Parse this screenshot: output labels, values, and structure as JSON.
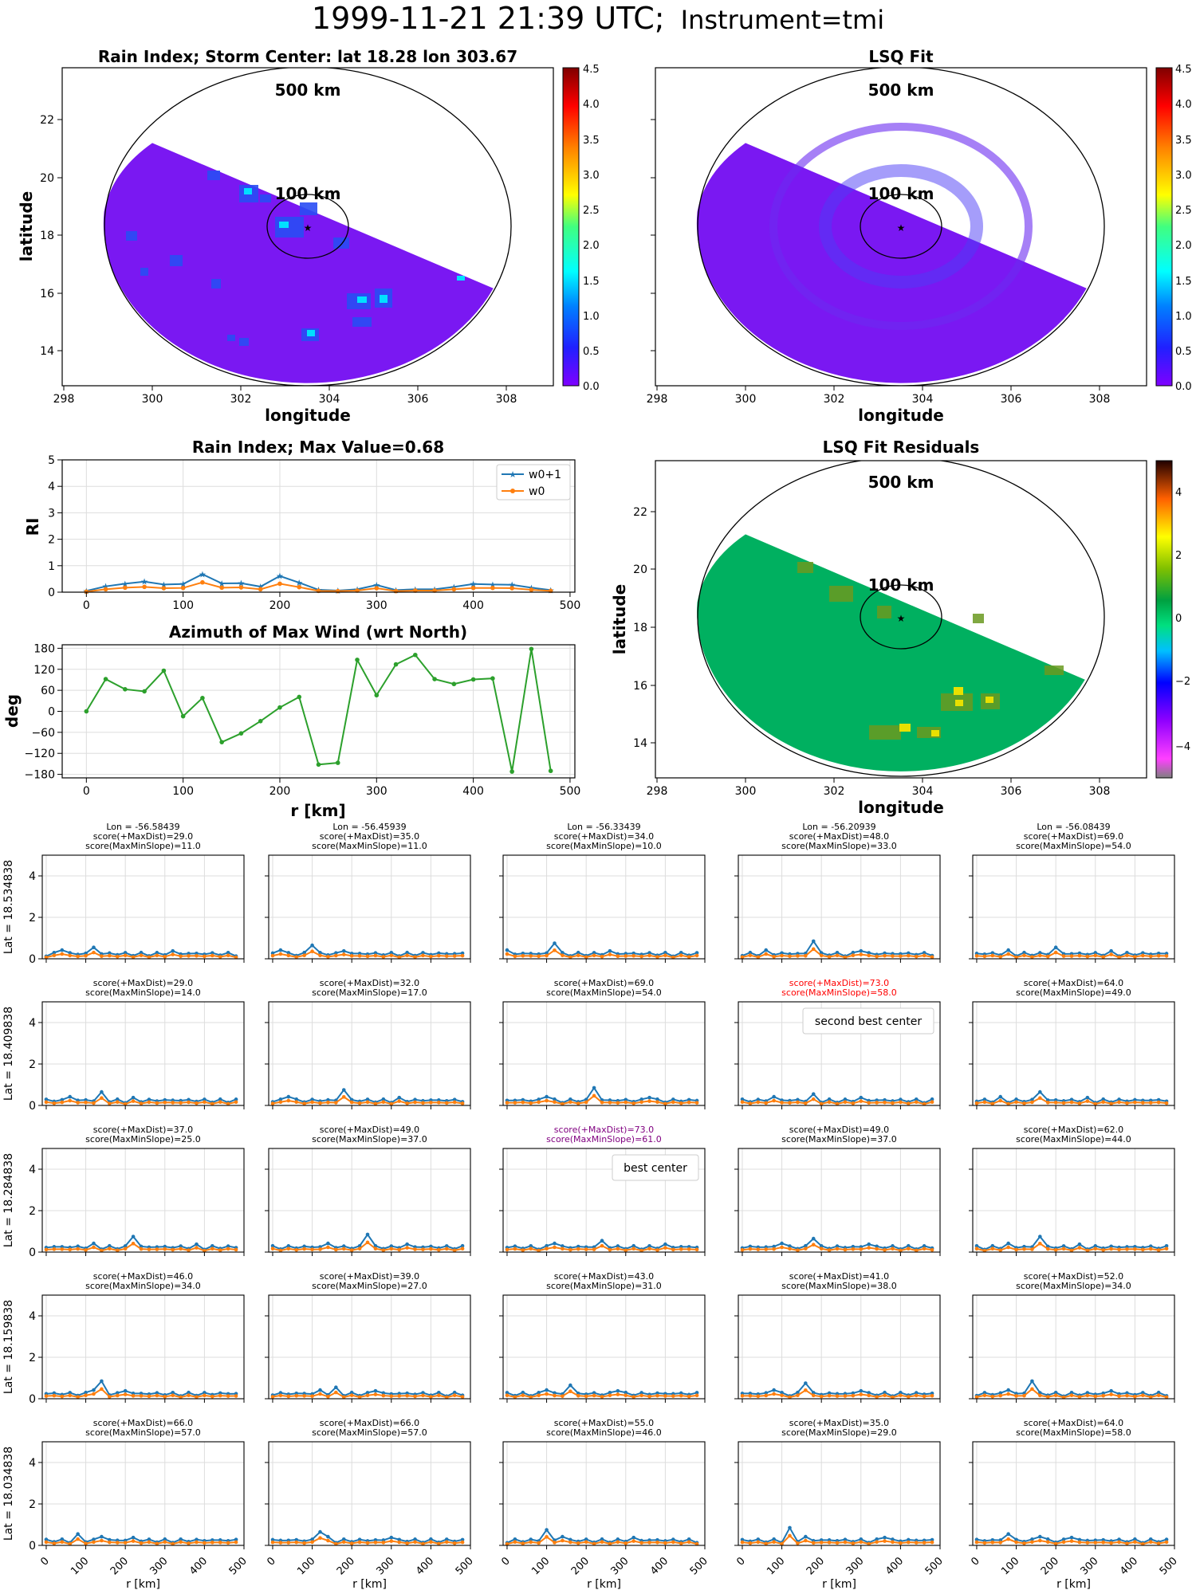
{
  "figure": {
    "title_main": "1999-11-21 21:39 UTC;",
    "title_instrument": "Instrument=tmi"
  },
  "maps": [
    {
      "title": "Rain Index; Storm Center: lat 18.28 lon 303.67",
      "xlabel": "longitude",
      "ylabel": "latitude",
      "xticks": [
        "298",
        "300",
        "302",
        "304",
        "306",
        "308"
      ],
      "yticks": [
        "14",
        "16",
        "18",
        "20",
        "22"
      ],
      "colorbar_ticks": [
        "0.0",
        "0.5",
        "1.0",
        "1.5",
        "2.0",
        "2.5",
        "3.0",
        "3.5",
        "4.0",
        "4.5"
      ],
      "ring_labels": [
        "500 km",
        "100 km"
      ],
      "colormap": "gist_rainbow"
    },
    {
      "title": "LSQ Fit",
      "xlabel": "longitude",
      "ylabel": "",
      "xticks": [
        "298",
        "300",
        "302",
        "304",
        "306",
        "308"
      ],
      "yticks": [],
      "colorbar_ticks": [
        "0.0",
        "0.5",
        "1.0",
        "1.5",
        "2.0",
        "2.5",
        "3.0",
        "3.5",
        "4.0",
        "4.5"
      ],
      "ring_labels": [
        "500 km",
        "100 km"
      ],
      "colormap": "gist_rainbow"
    },
    {
      "title": "LSQ Fit Residuals",
      "xlabel": "longitude",
      "ylabel": "latitude",
      "xticks": [
        "298",
        "300",
        "302",
        "304",
        "306",
        "308"
      ],
      "yticks": [
        "14",
        "16",
        "18",
        "20",
        "22"
      ],
      "colorbar_ticks": [
        "−4",
        "−2",
        "0",
        "2",
        "4"
      ],
      "ring_labels": [
        "500 km",
        "100 km"
      ],
      "colormap": "gist_ncar"
    }
  ],
  "chart_data": [
    {
      "type": "line",
      "title": "Rain Index; Max Value=0.68",
      "ylabel": "RI",
      "xlabel": "",
      "xticks": [
        "0",
        "100",
        "200",
        "300",
        "400",
        "500"
      ],
      "yticks": [
        "0",
        "1",
        "2",
        "3",
        "4",
        "5"
      ],
      "xlim": [
        -25,
        505
      ],
      "ylim": [
        0,
        5
      ],
      "grid": true,
      "legend_position": "top-right",
      "x": [
        0,
        20,
        40,
        60,
        80,
        100,
        120,
        140,
        160,
        180,
        200,
        220,
        240,
        260,
        280,
        300,
        320,
        340,
        360,
        380,
        400,
        420,
        440,
        460,
        480
      ],
      "series": [
        {
          "name": "w0+1",
          "color": "#1f77b4",
          "values": [
            0.05,
            0.22,
            0.32,
            0.4,
            0.29,
            0.31,
            0.68,
            0.33,
            0.34,
            0.21,
            0.61,
            0.36,
            0.09,
            0.06,
            0.11,
            0.27,
            0.08,
            0.11,
            0.11,
            0.2,
            0.31,
            0.29,
            0.28,
            0.17,
            0.08
          ]
        },
        {
          "name": "w0",
          "color": "#ff7f0e",
          "values": [
            0.02,
            0.11,
            0.17,
            0.2,
            0.15,
            0.16,
            0.37,
            0.17,
            0.18,
            0.11,
            0.32,
            0.19,
            0.05,
            0.04,
            0.06,
            0.15,
            0.04,
            0.06,
            0.06,
            0.11,
            0.16,
            0.16,
            0.15,
            0.09,
            0.05
          ]
        }
      ]
    },
    {
      "type": "line",
      "title": "Azimuth of Max Wind (wrt North)",
      "ylabel": "deg",
      "xlabel": "r [km]",
      "xticks": [
        "0",
        "100",
        "200",
        "300",
        "400",
        "500"
      ],
      "yticks": [
        "180",
        "120",
        "60",
        "0",
        "−60",
        "−120",
        "−180"
      ],
      "xlim": [
        -25,
        505
      ],
      "ylim": [
        -190,
        190
      ],
      "grid": true,
      "x": [
        0,
        20,
        40,
        60,
        80,
        100,
        120,
        140,
        160,
        180,
        200,
        220,
        240,
        260,
        280,
        300,
        320,
        340,
        360,
        380,
        400,
        420,
        440,
        460,
        480
      ],
      "series": [
        {
          "color": "#2ca02c",
          "values": [
            0,
            92,
            63,
            57,
            116,
            -14,
            38,
            -88,
            -63,
            -28,
            11,
            41,
            -152,
            -147,
            147,
            46,
            134,
            161,
            92,
            78,
            91,
            94,
            -172,
            178,
            -170
          ]
        }
      ]
    },
    {
      "type": "line",
      "grid_layout": "5x5 small multiples",
      "xlabel": "r [km]",
      "xticks": [
        "0",
        "100",
        "200",
        "300",
        "400",
        "500"
      ],
      "yticks": [
        "0",
        "2",
        "4"
      ],
      "ylim": [
        0,
        5
      ],
      "x": [
        0,
        20,
        40,
        60,
        80,
        100,
        120,
        140,
        160,
        180,
        200,
        220,
        240,
        260,
        280,
        300,
        320,
        340,
        360,
        380,
        400,
        420,
        440,
        460,
        480
      ],
      "series_names": [
        "w0+1",
        "w0"
      ],
      "series_colors": [
        "#1f77b4",
        "#ff7f0e"
      ],
      "column_lons": [
        "Lon = -56.58439",
        "Lon = -56.45939",
        "Lon = -56.33439",
        "Lon = -56.20939",
        "Lon = -56.08439"
      ],
      "row_lats": [
        "Lat = 18.534838",
        "Lat = 18.409838",
        "Lat = 18.284838",
        "Lat = 18.159838",
        "Lat = 18.034838"
      ],
      "panels": [
        {
          "l1": "score(+MaxDist)=29.0",
          "l2": "score(MaxMinSlope)=11.0",
          "peak": [
            2,
            6,
            16
          ]
        },
        {
          "l1": "score(+MaxDist)=35.0",
          "l2": "score(MaxMinSlope)=11.0",
          "peak": [
            1,
            5,
            9
          ]
        },
        {
          "l1": "score(+MaxDist)=34.0",
          "l2": "score(MaxMinSlope)=10.0",
          "peak": [
            0,
            6,
            13
          ]
        },
        {
          "l1": "score(+MaxDist)=48.0",
          "l2": "score(MaxMinSlope)=33.0",
          "peak": [
            3,
            9,
            15
          ]
        },
        {
          "l1": "score(+MaxDist)=69.0",
          "l2": "score(MaxMinSlope)=54.0",
          "peak": [
            4,
            10,
            17
          ]
        },
        {
          "l1": "score(+MaxDist)=29.0",
          "l2": "score(MaxMinSlope)=14.0",
          "peak": [
            3,
            7,
            11
          ]
        },
        {
          "l1": "score(+MaxDist)=32.0",
          "l2": "score(MaxMinSlope)=17.0",
          "peak": [
            2,
            9,
            16
          ]
        },
        {
          "l1": "score(+MaxDist)=69.0",
          "l2": "score(MaxMinSlope)=54.0",
          "peak": [
            5,
            11,
            18
          ]
        },
        {
          "l1": "score(+MaxDist)=73.0",
          "l2": "score(MaxMinSlope)=58.0",
          "peak": [
            4,
            9,
            15
          ],
          "color": "#ff0000",
          "note": "second best center"
        },
        {
          "l1": "score(+MaxDist)=64.0",
          "l2": "score(MaxMinSlope)=49.0",
          "peak": [
            3,
            8,
            14
          ]
        },
        {
          "l1": "score(+MaxDist)=37.0",
          "l2": "score(MaxMinSlope)=25.0",
          "peak": [
            6,
            11,
            19
          ]
        },
        {
          "l1": "score(+MaxDist)=49.0",
          "l2": "score(MaxMinSlope)=37.0",
          "peak": [
            7,
            12,
            17
          ]
        },
        {
          "l1": "score(+MaxDist)=73.0",
          "l2": "score(MaxMinSlope)=61.0",
          "peak": [
            6,
            12,
            20
          ],
          "color": "#800080",
          "note": "best center"
        },
        {
          "l1": "score(+MaxDist)=49.0",
          "l2": "score(MaxMinSlope)=37.0",
          "peak": [
            5,
            9,
            16
          ]
        },
        {
          "l1": "score(+MaxDist)=62.0",
          "l2": "score(MaxMinSlope)=44.0",
          "peak": [
            4,
            8,
            13
          ]
        },
        {
          "l1": "score(+MaxDist)=46.0",
          "l2": "score(MaxMinSlope)=34.0",
          "peak": [
            6,
            7,
            10
          ]
        },
        {
          "l1": "score(+MaxDist)=39.0",
          "l2": "score(MaxMinSlope)=27.0",
          "peak": [
            6,
            8,
            13
          ]
        },
        {
          "l1": "score(+MaxDist)=43.0",
          "l2": "score(MaxMinSlope)=31.0",
          "peak": [
            5,
            8,
            14
          ]
        },
        {
          "l1": "score(+MaxDist)=41.0",
          "l2": "score(MaxMinSlope)=38.0",
          "peak": [
            4,
            8,
            15
          ]
        },
        {
          "l1": "score(+MaxDist)=52.0",
          "l2": "score(MaxMinSlope)=34.0",
          "peak": [
            4,
            7,
            17
          ]
        },
        {
          "l1": "score(+MaxDist)=66.0",
          "l2": "score(MaxMinSlope)=57.0",
          "peak": [
            7,
            4,
            11
          ]
        },
        {
          "l1": "score(+MaxDist)=66.0",
          "l2": "score(MaxMinSlope)=57.0",
          "peak": [
            7,
            6,
            15
          ]
        },
        {
          "l1": "score(+MaxDist)=55.0",
          "l2": "score(MaxMinSlope)=46.0",
          "peak": [
            7,
            5,
            16
          ]
        },
        {
          "l1": "score(+MaxDist)=35.0",
          "l2": "score(MaxMinSlope)=29.0",
          "peak": [
            8,
            6,
            18
          ]
        },
        {
          "l1": "score(+MaxDist)=64.0",
          "l2": "score(MaxMinSlope)=58.0",
          "peak": [
            8,
            4,
            12
          ]
        }
      ]
    }
  ]
}
